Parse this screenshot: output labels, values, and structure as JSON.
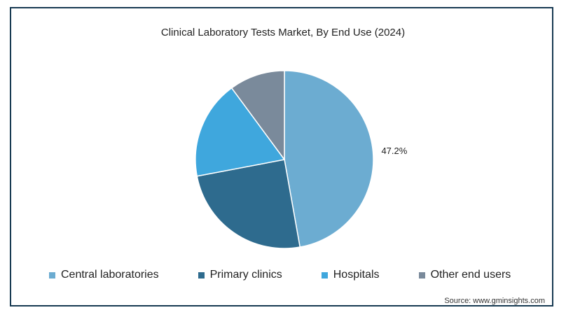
{
  "chart_data": {
    "type": "pie",
    "title": "Clinical Laboratory Tests Market, By End Use (2024)",
    "slices": [
      {
        "name": "Central laboratories",
        "value": 47.2,
        "label": "47.2%",
        "color": "#6cacd1"
      },
      {
        "name": "Primary clinics",
        "value": 24.8,
        "label": "",
        "color": "#2e6b8e"
      },
      {
        "name": "Hospitals",
        "value": 17.9,
        "label": "",
        "color": "#3fa7dd"
      },
      {
        "name": "Other end users",
        "value": 10.1,
        "label": "",
        "color": "#7a8a9b"
      }
    ],
    "legend_position": "bottom"
  },
  "source": "Source: www.gminsights.com"
}
